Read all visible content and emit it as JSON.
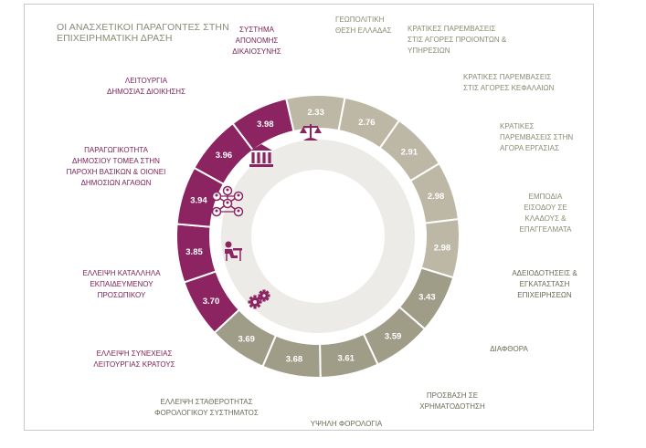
{
  "page": {
    "title": "ΟΙ ΑΝΑΣΧΕΤΙΚΟΙ ΠΑΡΑΓΟΝΤΕΣ ΣΤΗΝ ΕΠΙΧΕΙΡΗΜΑΤΙΚΗ ΔΡΑΣΗ"
  },
  "colors": {
    "purple": "#8c2461",
    "light_gray": "#bdb8a6",
    "dark_gray": "#9f9c88",
    "inner_ring": "#ecebe8",
    "purple_text": "#7d2257",
    "gray_text": "#8a8a73",
    "dark_text": "#6b6a55"
  },
  "icons": [
    "scales-icon",
    "government-building-icon",
    "network-people-icon",
    "office-worker-icon",
    "gears-icon"
  ],
  "chart_data": {
    "type": "donut",
    "title": "ΟΙ ΑΝΑΣΧΕΤΙΚΟΙ ΠΑΡΑΓΟΝΤΕΣ ΣΤΗΝ ΕΠΙΧΕΙΡΗΜΑΤΙΚΗ ΔΡΑΣΗ",
    "segments": [
      {
        "label": [
          "ΓΕΩΠΟΛΙΤΙΚΗ",
          "ΘΕΣΗ ΕΛΛΑΔΑΣ"
        ],
        "value": 2.33,
        "group": "light"
      },
      {
        "label": [
          "ΚΡΑΤΙΚΕΣ ΠΑΡΕΜΒΑΣΕΙΣ",
          "ΣΤΙΣ ΑΓΟΡΕΣ ΠΡΟΙΟΝΤΩΝ &",
          "ΥΠΗΡΕΣΙΩΝ"
        ],
        "value": 2.76,
        "group": "light"
      },
      {
        "label": [
          "ΚΡΑΤΙΚΕΣ ΠΑΡΕΜΒΑΣΕΙΣ",
          "ΣΤΙΣ ΑΓΟΡΕΣ ΚΕΦΑΛΑΙΩΝ"
        ],
        "value": 2.91,
        "group": "light"
      },
      {
        "label": [
          "ΚΡΑΤΙΚΕΣ",
          "ΠΑΡΕΜΒΑΣΕΙΣ ΣΤΗΝ",
          "ΑΓΟΡΑ ΕΡΓΑΣΙΑΣ"
        ],
        "value": 2.98,
        "group": "light"
      },
      {
        "label": [
          "ΕΜΠΟΔΙΑ",
          "ΕΙΣΟΔΟΥ ΣΕ",
          "ΚΛΑΔΟΥΣ &",
          "ΕΠΑΓΓΕΛΜΑΤΑ"
        ],
        "value": 2.98,
        "group": "light"
      },
      {
        "label": [
          "ΑΔΕΙΟΔΟΤΗΣΕΙΣ &",
          "ΕΓΚΑΤΑΣΤΑΣΗ",
          "ΕΠΙΧΕΙΡΗΣΕΩΝ"
        ],
        "value": 3.43,
        "group": "dark"
      },
      {
        "label": [
          "ΔΙΑΦΘΟΡΑ"
        ],
        "value": 3.59,
        "group": "dark"
      },
      {
        "label": [
          "ΠΡΟΣΒΑΣΗ ΣΕ",
          "ΧΡΗΜΑΤΟΔΟΤΗΣΗ"
        ],
        "value": 3.61,
        "group": "dark"
      },
      {
        "label": [
          "ΥΨΗΛΗ ΦΟΡΟΛΟΓΙΑ"
        ],
        "value": 3.68,
        "group": "dark"
      },
      {
        "label": [
          "ΕΛΛΕΙΨΗ ΣΤΑΘΕΡΟΤΗΤΑΣ",
          "ΦΟΡΟΛΟΓΙΚΟΥ ΣΥΣΤΗΜΑΤΟΣ"
        ],
        "value": 3.69,
        "group": "dark"
      },
      {
        "label": [
          "ΕΛΛΕΙΨΗ ΣΥΝΕΧΕΙΑΣ",
          "ΛΕΙΤΟΥΡΓΙΑΣ ΚΡΑΤΟΥΣ"
        ],
        "value": 3.7,
        "group": "purple"
      },
      {
        "label": [
          "ΕΛΛΕΙΨΗ ΚΑΤΑΛΛΗΛΑ",
          "ΕΚΠΑΙΔΕΥΜΕΝΟΥ",
          "ΠΡΟΣΩΠΙΚΟΥ"
        ],
        "value": 3.85,
        "group": "purple"
      },
      {
        "label": [
          "ΠΑΡΑΓΩΓΙΚΟΤΗΤΑ",
          "ΔΗΜΟΣΙΟΥ ΤΟΜΕΑ ΣΤΗΝ",
          "ΠΑΡΟΧΗ ΒΑΣΙΚΩΝ & ΟΙΟΝΕΙ",
          "ΔΗΜΟΣΙΩΝ ΑΓΑΘΩΝ"
        ],
        "value": 3.94,
        "group": "purple"
      },
      {
        "label": [
          "ΛΕΙΤΟΥΡΓΙΑ",
          "ΔΗΜΟΣΙΑΣ ΔΙΟΙΚΗΣΗΣ"
        ],
        "value": 3.96,
        "group": "purple"
      },
      {
        "label": [
          "ΣΥΣΤΗΜΑ",
          "ΑΠΟΝΟΜΗΣ",
          "ΔΙΚΑΙΟΣΥΝΗΣ"
        ],
        "value": 3.98,
        "group": "purple"
      }
    ]
  }
}
